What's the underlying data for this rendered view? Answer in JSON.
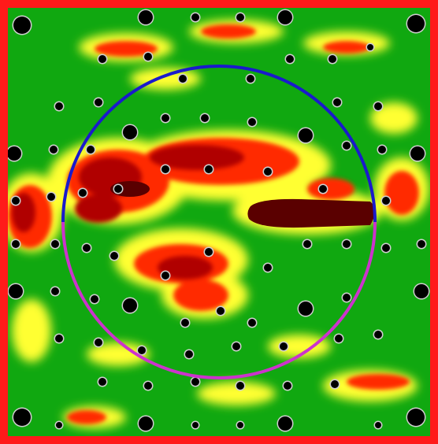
{
  "colors": {
    "frame": "#ff1a1a",
    "background": "#10a810",
    "low": "#ffff33",
    "mid": "#ff2a00",
    "high": "#b00000",
    "peak": "#5a0000",
    "circle_upper": "#1a1acc",
    "circle_lower": "#cc33cc",
    "dot": "#000000",
    "dot_ring": "#cfcfcf"
  },
  "elements": {
    "outer_frame": "red-square-border",
    "field": "green-field-with-heat-blobs",
    "circle": "two-tone-circle-blue-top-magenta-bottom",
    "markers": "black-dots-with-gray-rim"
  }
}
